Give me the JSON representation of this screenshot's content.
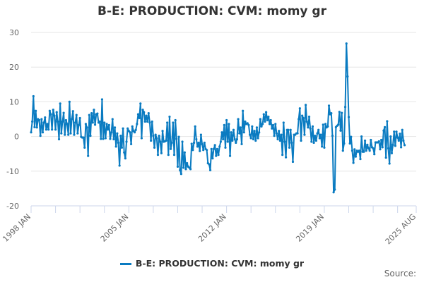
{
  "chart_data": {
    "type": "line",
    "title": "B-E: PRODUCTION: CVM: momy gr",
    "xlabel": "",
    "ylabel": "",
    "x_start": "1998 JAN",
    "x_frequency": "monthly",
    "x_tick_labels": [
      "1998 JAN",
      "2005 JAN",
      "2012 JAN",
      "2019 JAN",
      "2025 AUG"
    ],
    "y_ticks": [
      30,
      20,
      10,
      0,
      -10,
      -20
    ],
    "ylim": [
      -20,
      30
    ],
    "grid": true,
    "legend_position": "bottom",
    "line_color": "#0a7bc1",
    "series": [
      {
        "name": "B-E: PRODUCTION: CVM: momy gr",
        "values": [
          1.2,
          4.3,
          11.6,
          2.7,
          7.4,
          2.6,
          5,
          4.7,
          0.2,
          5,
          1.2,
          4,
          5.5,
          2,
          3.6,
          2,
          7.4,
          6.4,
          2,
          7.7,
          6,
          2,
          7,
          4.3,
          -0.8,
          9.5,
          0.9,
          4.3,
          6.8,
          0.5,
          4.7,
          3.6,
          0.5,
          10,
          0.9,
          5,
          7.3,
          0.5,
          4,
          6.2,
          0.9,
          3.3,
          5.3,
          -0.1,
          -0.3,
          -0.3,
          -3.2,
          3.6,
          2.6,
          -5.6,
          6.2,
          0.2,
          6.7,
          4,
          7.7,
          3.4,
          6.4,
          6.6,
          4,
          4.3,
          -0.7,
          10.7,
          -0.7,
          4,
          -0.5,
          3.6,
          2,
          3.3,
          -0.7,
          1.2,
          5,
          -0.8,
          2.6,
          -2.9,
          0.9,
          -1.8,
          -8.4,
          0.2,
          -3.2,
          2.3,
          -4.6,
          -6.3,
          -1.5,
          2.3,
          1.6,
          1.2,
          -2.2,
          2.9,
          1.6,
          1.2,
          1.9,
          3.6,
          6.4,
          5.3,
          9.5,
          -0.5,
          7.7,
          7,
          4.3,
          6,
          4.3,
          6.7,
          4,
          -1.2,
          4.3,
          0.2,
          -3.2,
          0.5,
          -0.5,
          -5.3,
          0.2,
          -1.5,
          -4.8,
          1.6,
          -1.5,
          -1.4,
          -1.2,
          4,
          -5.3,
          5.7,
          -3.6,
          -1.8,
          4,
          -5.3,
          4.7,
          -0.7,
          -8.7,
          -0.1,
          -9.7,
          -10.8,
          -1.5,
          -9,
          -4.6,
          -9.4,
          -7.7,
          -8.7,
          -9,
          -9.4,
          -2.1,
          -3.9,
          -1.8,
          2.9,
          -0.8,
          -2.9,
          -1.8,
          -4.2,
          0.5,
          -2.2,
          -3.9,
          -1.8,
          -3.6,
          -3.9,
          -7.7,
          -8,
          -9.7,
          -3.6,
          -6.3,
          -3.6,
          -2.5,
          -5.6,
          -3.6,
          -5.3,
          -2.9,
          -1.5,
          1.2,
          -0.8,
          3.3,
          -3.2,
          4.7,
          -1.5,
          3.6,
          -5.6,
          1.2,
          -1.2,
          1.9,
          -0.8,
          -1.8,
          -0.8,
          5,
          0.9,
          2.6,
          -2.2,
          7.4,
          1.2,
          4.3,
          3.6,
          3.8,
          3.3,
          0.5,
          -0.5,
          2.9,
          -0.8,
          1.6,
          -1.2,
          2.6,
          -0.5,
          1.2,
          5,
          2.9,
          3.6,
          6.4,
          4.3,
          7,
          4.7,
          5.7,
          3.6,
          4.7,
          2.3,
          3.3,
          0.2,
          3.6,
          0.9,
          -0.8,
          1.6,
          -1.2,
          0.5,
          -5.3,
          4,
          -1.5,
          -6,
          1.9,
          1.9,
          -3.2,
          1.9,
          -1.8,
          -7.3,
          0.5,
          0.5,
          0.9,
          0.9,
          5,
          8.1,
          -1.2,
          6,
          5.3,
          0.5,
          9.1,
          4.3,
          2.6,
          5.7,
          2.3,
          -1.5,
          2.9,
          -1.8,
          0.2,
          -1.2,
          0.9,
          1.9,
          -0.5,
          0.5,
          -2.9,
          3.4,
          -3.2,
          3.6,
          2.6,
          2.9,
          8.9,
          6.4,
          6.7,
          0.2,
          -16.1,
          -15.3,
          2.7,
          3.1,
          3.4,
          7.1,
          1.7,
          6.8,
          -4.1,
          -2,
          8.5,
          26.8,
          17.3,
          5.6,
          -2,
          -0.1,
          -4.1,
          -7.6,
          -3.7,
          -5.8,
          -4.1,
          -4.4,
          -4.1,
          -6.5,
          0,
          -4.4,
          -4.4,
          -1.2,
          -4.1,
          -2.4,
          -3.4,
          -4.1,
          -1,
          -3.1,
          -3.4,
          -5.1,
          -1.7,
          -1.7,
          -1.7,
          -1.4,
          -3.7,
          -1,
          -3.1,
          1.7,
          2.7,
          -6.1,
          4.4,
          -3.4,
          -7.8,
          0,
          -4.8,
          -2.4,
          1.4,
          -2.7,
          1.4,
          -0.3,
          -1.2,
          0.8,
          -3.1,
          1.9,
          -1.2,
          -2.5
        ]
      }
    ]
  },
  "source_label": "Source:"
}
